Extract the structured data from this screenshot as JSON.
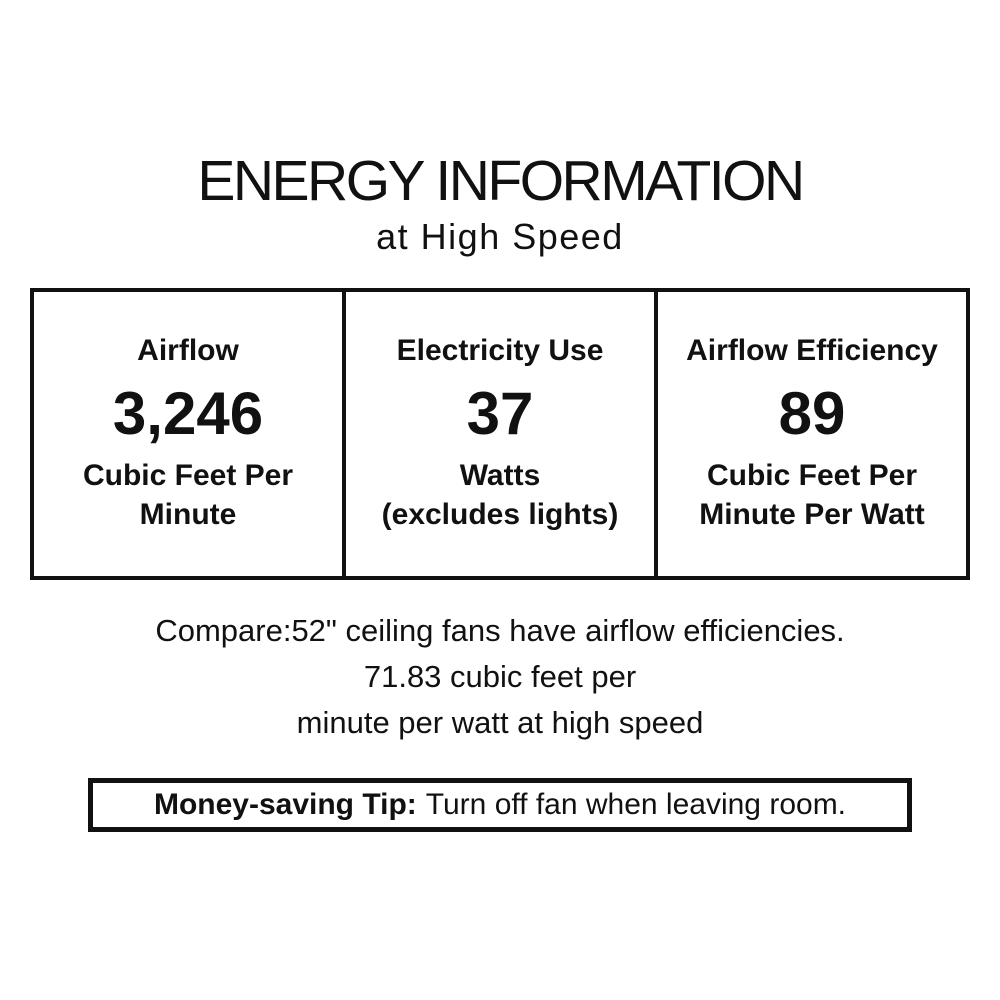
{
  "label": {
    "title": "ENERGY INFORMATION",
    "subtitle": "at High Speed",
    "table": {
      "cells": [
        {
          "header": "Airflow",
          "value": "3,246",
          "unit_line1": "Cubic Feet Per",
          "unit_line2": "Minute"
        },
        {
          "header": "Electricity Use",
          "value": "37",
          "unit_line1": "Watts",
          "unit_line2": "(excludes lights)"
        },
        {
          "header": "Airflow Efficiency",
          "value": "89",
          "unit_line1": "Cubic Feet Per",
          "unit_line2": "Minute Per Watt"
        }
      ]
    },
    "compare": {
      "line1": "Compare:52\" ceiling fans have airflow efficiencies.",
      "line2": "71.83 cubic feet per",
      "line3": "minute per watt at high speed"
    },
    "tip": {
      "label": "Money-saving Tip:",
      "text": "Turn off fan when leaving room."
    },
    "colors": {
      "text": "#111111",
      "border": "#111111",
      "background": "#ffffff"
    }
  }
}
